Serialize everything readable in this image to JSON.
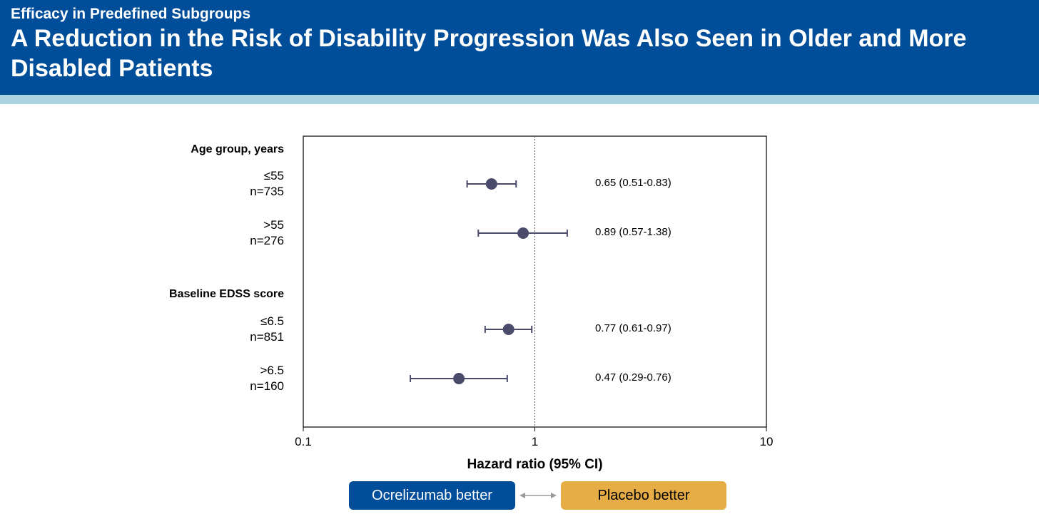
{
  "header": {
    "subtitle": "Efficacy in Predefined Subgroups",
    "title": "A Reduction in the Risk of Disability Progression Was Also Seen in Older and More Disabled Patients"
  },
  "colors": {
    "header_bg": "#004e9a",
    "band": "#a9d1e0",
    "marker": "#4a4a6a",
    "ocrelizumab": "#004e9a",
    "placebo": "#e6ad47"
  },
  "legend": {
    "left_label": "Ocrelizumab better",
    "right_label": "Placebo better",
    "arrow_icon": "double-arrow-icon"
  },
  "chart_data": {
    "type": "forest",
    "xscale": "log",
    "xlim": [
      0.1,
      10
    ],
    "xticks": [
      "0.1",
      "1",
      "10"
    ],
    "xlabel": "Hazard ratio (95% CI)",
    "reference_line": 1,
    "groups": [
      {
        "heading": "Age group, years",
        "rows": [
          {
            "label": "≤55",
            "n": "n=735",
            "hr": 0.65,
            "lo": 0.51,
            "hi": 0.83,
            "text": "0.65 (0.51-0.83)"
          },
          {
            "label": ">55",
            "n": "n=276",
            "hr": 0.89,
            "lo": 0.57,
            "hi": 1.38,
            "text": "0.89 (0.57-1.38)"
          }
        ]
      },
      {
        "heading": "Baseline EDSS score",
        "rows": [
          {
            "label": "≤6.5",
            "n": "n=851",
            "hr": 0.77,
            "lo": 0.61,
            "hi": 0.97,
            "text": "0.77 (0.61-0.97)"
          },
          {
            "label": ">6.5",
            "n": "n=160",
            "hr": 0.47,
            "lo": 0.29,
            "hi": 0.76,
            "text": "0.47 (0.29-0.76)"
          }
        ]
      }
    ]
  }
}
